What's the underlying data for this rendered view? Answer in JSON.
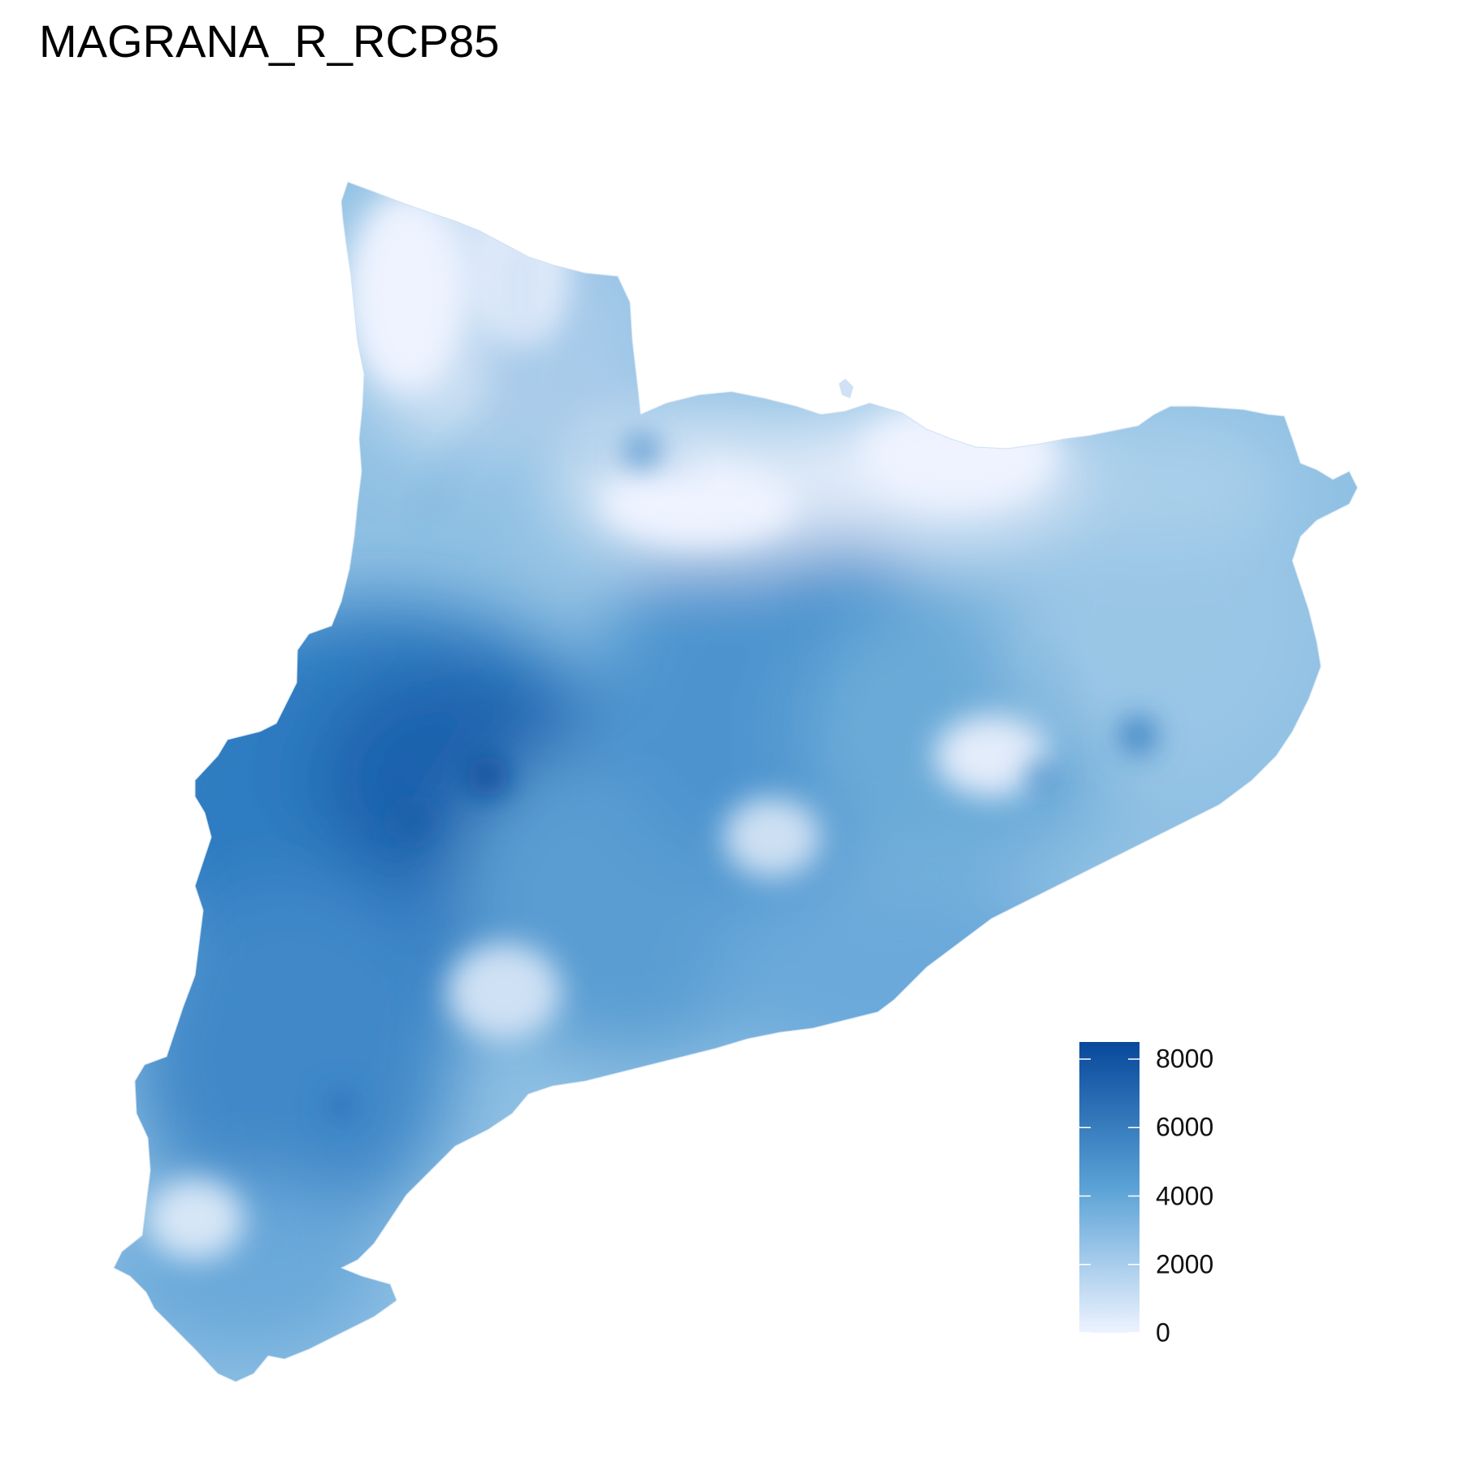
{
  "title": "MAGRANA_R_RCP85",
  "legend": {
    "min": 0,
    "max": 8500,
    "ticks": [
      {
        "value": 8000,
        "label": "8000"
      },
      {
        "value": 6000,
        "label": "6000"
      },
      {
        "value": 4000,
        "label": "4000"
      },
      {
        "value": 2000,
        "label": "2000"
      },
      {
        "value": 0,
        "label": "0"
      }
    ],
    "colors": {
      "low": "#eef3ff",
      "mid": "#5aa2d6",
      "high": "#08489b"
    }
  }
}
